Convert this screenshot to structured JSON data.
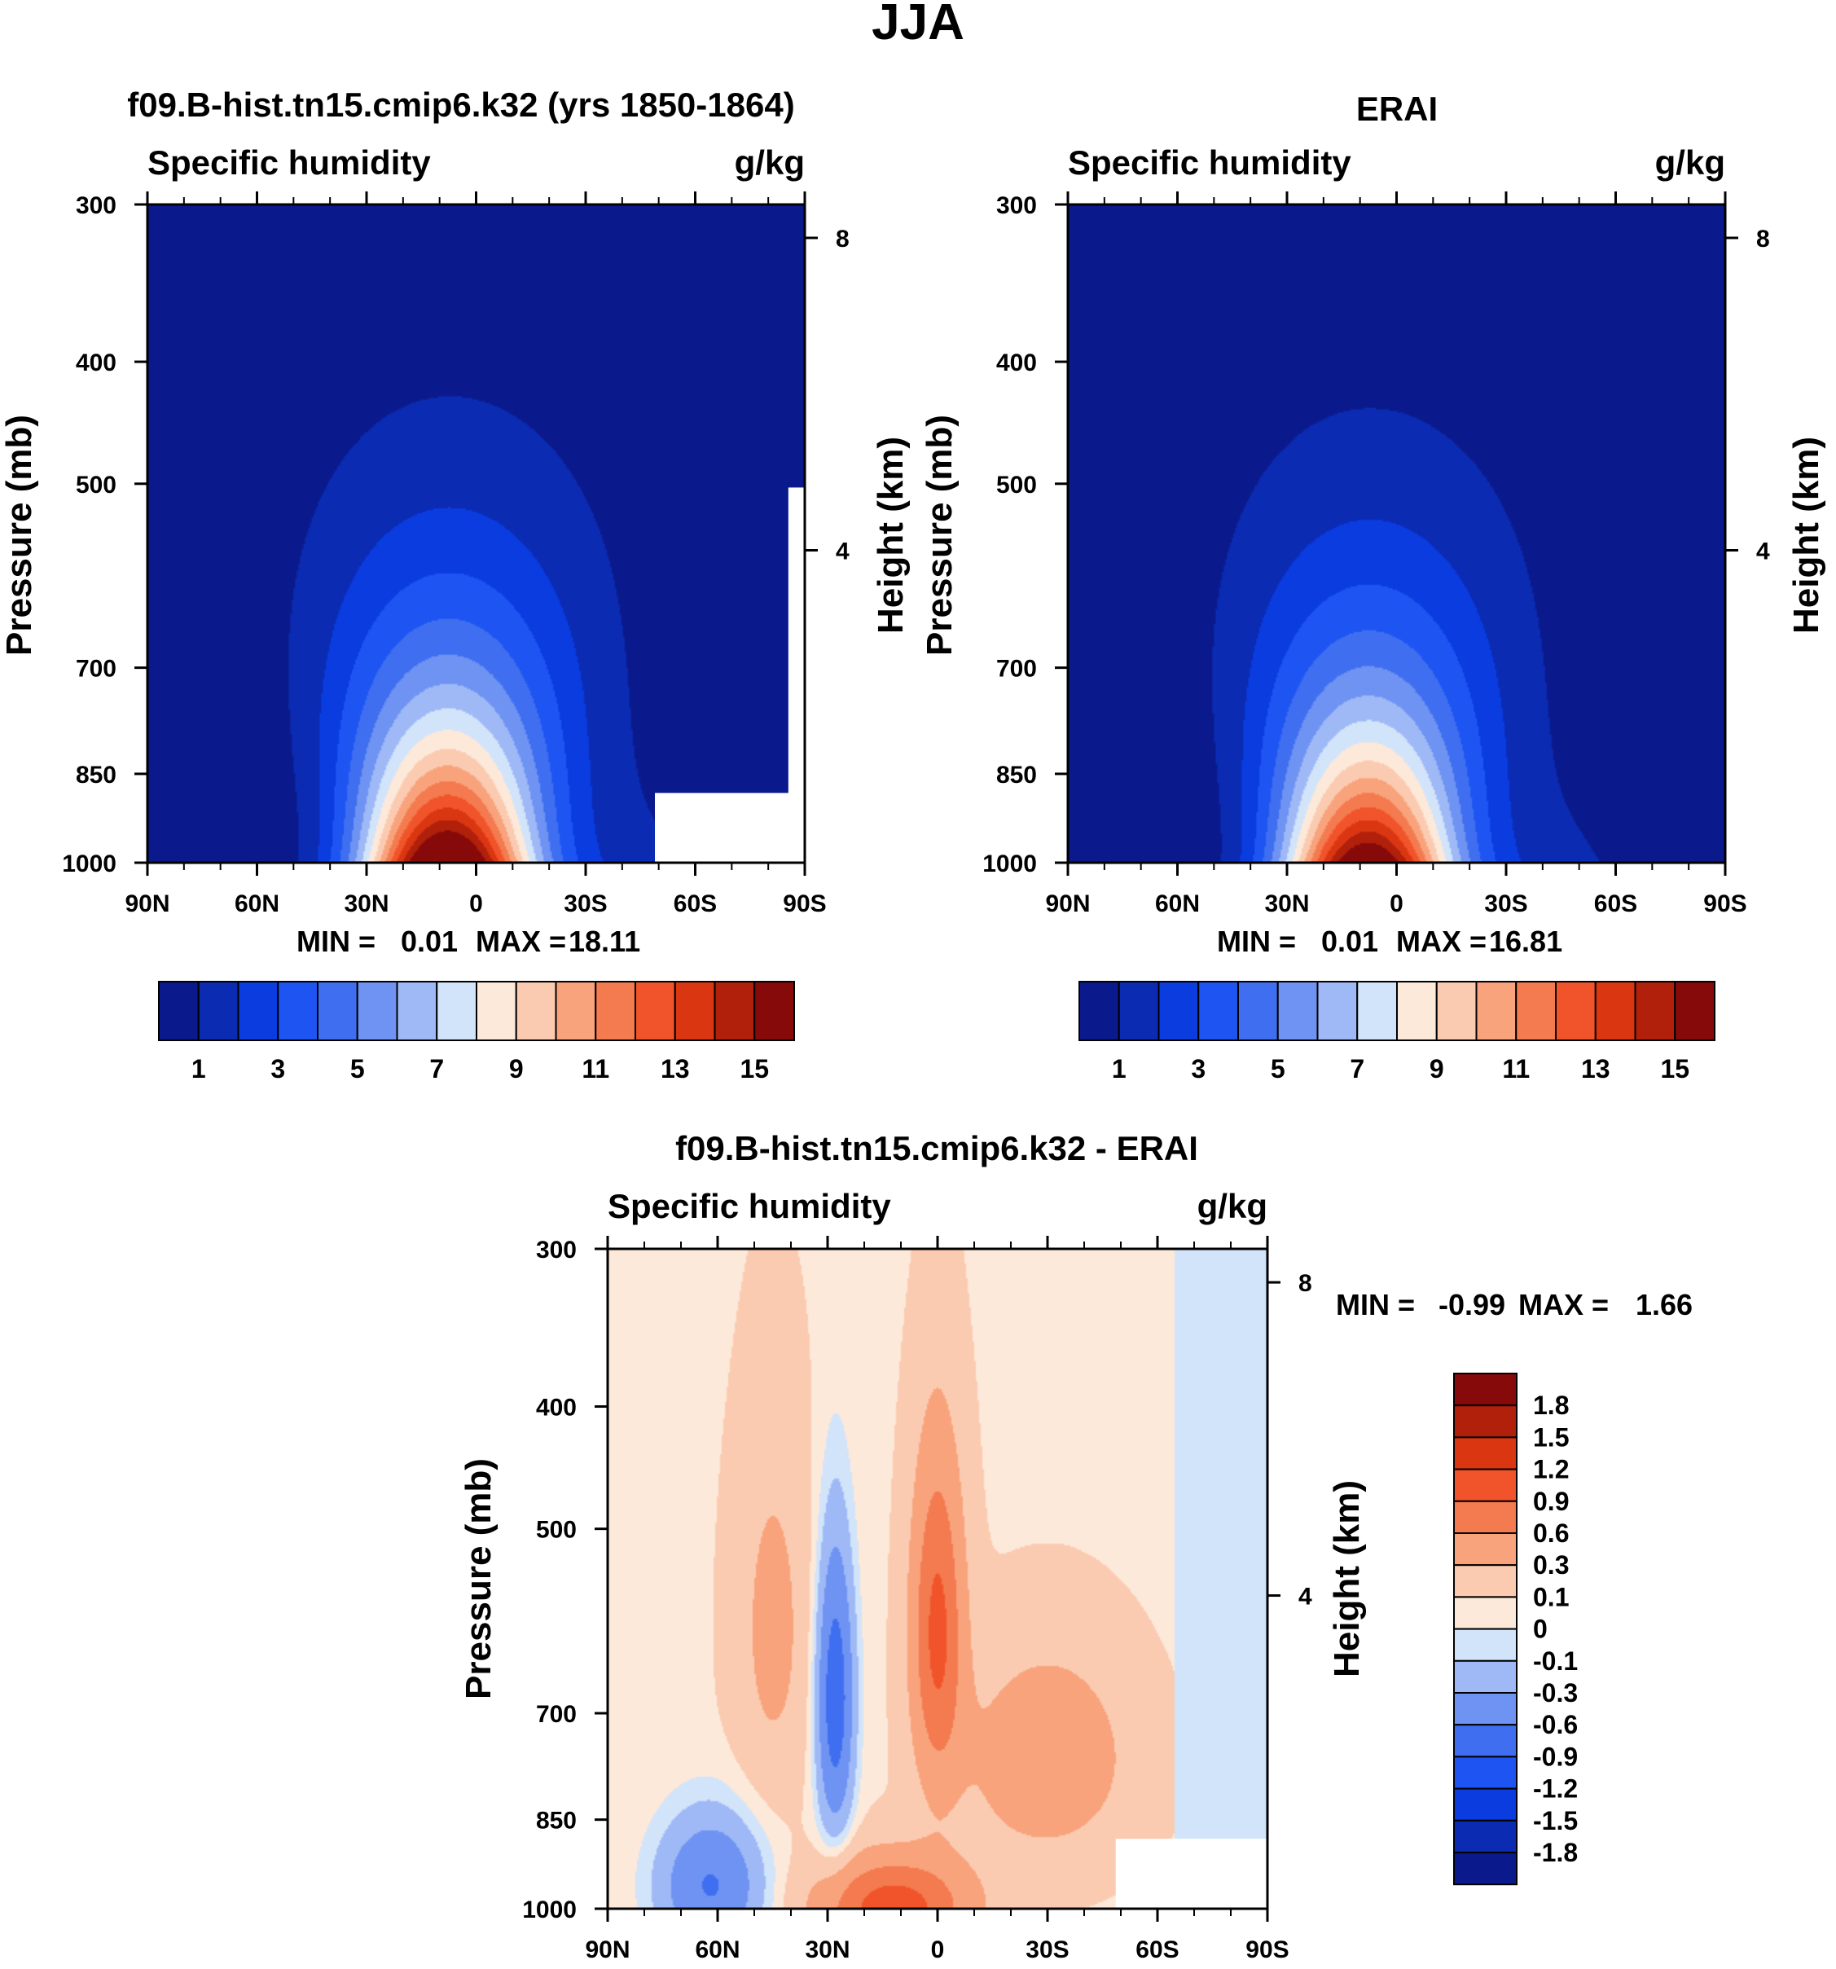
{
  "figure": {
    "title": "JJA"
  },
  "chart_data": [
    {
      "type": "heatmap",
      "panel": "model",
      "title": "f09.B-hist.tn15.cmip6.k32 (yrs 1850-1864)",
      "left_label": "Specific humidity",
      "right_label": "g/kg",
      "ylabel": "Pressure (mb)",
      "y2label": "Height (km)",
      "x_ticks": [
        "90N",
        "60N",
        "30N",
        "0",
        "30S",
        "60S",
        "90S"
      ],
      "x_values": [
        90,
        60,
        30,
        0,
        -30,
        -60,
        -90
      ],
      "y_ticks": [
        "300",
        "400",
        "500",
        "700",
        "850",
        "1000"
      ],
      "y_values": [
        300,
        400,
        500,
        700,
        850,
        1000
      ],
      "y2_ticks": [
        "8",
        "4"
      ],
      "stats": {
        "min_label": "MIN =",
        "min": "0.01",
        "max_label": "MAX =",
        "max": "18.11"
      },
      "levels": [
        1,
        2,
        3,
        4,
        5,
        6,
        7,
        8,
        9,
        10,
        11,
        12,
        13,
        14,
        15
      ],
      "colorbar_labels": [
        "1",
        "3",
        "5",
        "7",
        "9",
        "11",
        "13",
        "15"
      ],
      "colors": [
        "#0a1a8c",
        "#0b2bb3",
        "#0a3ce0",
        "#1e55f2",
        "#3f6ff0",
        "#6e93f2",
        "#9fb9f7",
        "#d2e4fa",
        "#fde9da",
        "#fbcbb1",
        "#f8a37c",
        "#f47a4f",
        "#f1542a",
        "#db3612",
        "#b0200b",
        "#870a0a"
      ],
      "ridge": {
        "center_lat": 8,
        "peak_value": 18.11,
        "missing_regions": [
          "surface near 60S-90S",
          "high terrain near 90S"
        ]
      }
    },
    {
      "type": "heatmap",
      "panel": "reference",
      "title": "ERAI",
      "left_label": "Specific humidity",
      "right_label": "g/kg",
      "ylabel": "Pressure (mb)",
      "y2label": "Height (km)",
      "x_ticks": [
        "90N",
        "60N",
        "30N",
        "0",
        "30S",
        "60S",
        "90S"
      ],
      "x_values": [
        90,
        60,
        30,
        0,
        -30,
        -60,
        -90
      ],
      "y_ticks": [
        "300",
        "400",
        "500",
        "700",
        "850",
        "1000"
      ],
      "y_values": [
        300,
        400,
        500,
        700,
        850,
        1000
      ],
      "y2_ticks": [
        "8",
        "4"
      ],
      "stats": {
        "min_label": "MIN =",
        "min": "0.01",
        "max_label": "MAX =",
        "max": "16.81"
      },
      "levels": [
        1,
        2,
        3,
        4,
        5,
        6,
        7,
        8,
        9,
        10,
        11,
        12,
        13,
        14,
        15
      ],
      "colorbar_labels": [
        "1",
        "3",
        "5",
        "7",
        "9",
        "11",
        "13",
        "15"
      ],
      "colors": [
        "#0a1a8c",
        "#0b2bb3",
        "#0a3ce0",
        "#1e55f2",
        "#3f6ff0",
        "#6e93f2",
        "#9fb9f7",
        "#d2e4fa",
        "#fde9da",
        "#fbcbb1",
        "#f8a37c",
        "#f47a4f",
        "#f1542a",
        "#db3612",
        "#b0200b",
        "#870a0a"
      ],
      "ridge": {
        "center_lat": 8,
        "peak_value": 16.81
      }
    },
    {
      "type": "heatmap",
      "panel": "difference",
      "title": "f09.B-hist.tn15.cmip6.k32 - ERAI",
      "left_label": "Specific humidity",
      "right_label": "g/kg",
      "ylabel": "Pressure (mb)",
      "y2label": "Height (km)",
      "x_ticks": [
        "90N",
        "60N",
        "30N",
        "0",
        "30S",
        "60S",
        "90S"
      ],
      "x_values": [
        90,
        60,
        30,
        0,
        -30,
        -60,
        -90
      ],
      "y_ticks": [
        "300",
        "400",
        "500",
        "700",
        "850",
        "1000"
      ],
      "y_values": [
        300,
        400,
        500,
        700,
        850,
        1000
      ],
      "y2_ticks": [
        "8",
        "4"
      ],
      "stats": {
        "min_label": "MIN =",
        "min": "-0.99",
        "max_label": "MAX =",
        "max": "1.66"
      },
      "colorbar_labels": [
        "1.8",
        "1.5",
        "1.2",
        "0.9",
        "0.6",
        "0.3",
        "0.1",
        "0",
        "-0.1",
        "-0.3",
        "-0.6",
        "-0.9",
        "-1.2",
        "-1.5",
        "-1.8"
      ],
      "colors": [
        "#870a0a",
        "#b0200b",
        "#db3612",
        "#f1542a",
        "#f47a4f",
        "#f8a37c",
        "#fbcbb1",
        "#fde9da",
        "#d2e4fa",
        "#9fb9f7",
        "#6e93f2",
        "#3f6ff0",
        "#1e55f2",
        "#0a3ce0",
        "#0b2bb3",
        "#0a1a8c"
      ]
    }
  ]
}
